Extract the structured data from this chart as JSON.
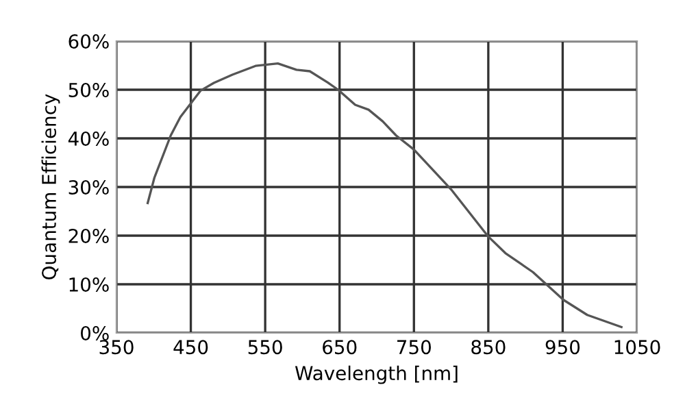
{
  "chart_data": {
    "type": "line",
    "xlabel": "Wavelength [nm]",
    "ylabel": "Quantum Efficiency",
    "series": [
      {
        "color": "#555555",
        "x": [
          392,
          401,
          423,
          436,
          463,
          481,
          506,
          537,
          567,
          592,
          610,
          634,
          648,
          671,
          689,
          708,
          726,
          750,
          800,
          850,
          873,
          910,
          951,
          983,
          1029
        ],
        "values": [
          26.7,
          31.9,
          40.6,
          44.4,
          49.8,
          51.4,
          53.1,
          54.9,
          55.4,
          54.1,
          53.8,
          51.5,
          50.0,
          46.9,
          45.9,
          43.5,
          40.6,
          37.7,
          29.5,
          19.8,
          16.4,
          12.5,
          6.8,
          3.7,
          1.2
        ]
      }
    ],
    "xlim": [
      350,
      1050
    ],
    "xticks": [
      350,
      450,
      550,
      650,
      750,
      850,
      950,
      1050
    ],
    "ylim": [
      0,
      60
    ],
    "yticks": [
      {
        "value": 0,
        "label": "0%"
      },
      {
        "value": 10,
        "label": "10%"
      },
      {
        "value": 20,
        "label": "20%"
      },
      {
        "value": 30,
        "label": "30%"
      },
      {
        "value": 40,
        "label": "40%"
      },
      {
        "value": 50,
        "label": "50%"
      },
      {
        "value": 60,
        "label": "60%"
      }
    ],
    "grid": true
  }
}
